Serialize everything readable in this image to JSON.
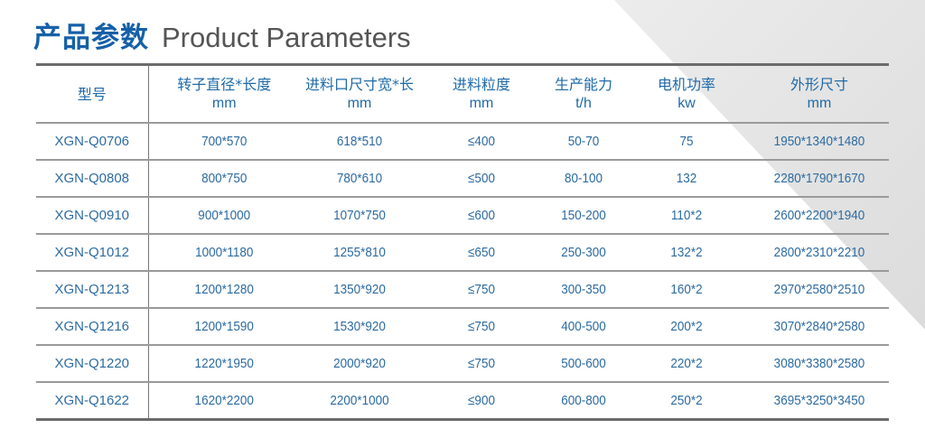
{
  "title": {
    "cn": "产品参数",
    "en": "Product Parameters"
  },
  "colors": {
    "title_blue": "#1660a8",
    "text_blue": "#2d6ba1",
    "background_band": "#e2e2e2"
  },
  "table": {
    "headers": [
      {
        "label": "型号",
        "unit": ""
      },
      {
        "label": "转子直径*长度",
        "unit": "mm"
      },
      {
        "label": "进料口尺寸宽*长",
        "unit": "mm"
      },
      {
        "label": "进料粒度",
        "unit": "mm"
      },
      {
        "label": "生产能力",
        "unit": "t/h"
      },
      {
        "label": "电机功率",
        "unit": "kw"
      },
      {
        "label": "外形尺寸",
        "unit": "mm"
      }
    ],
    "rows": [
      [
        "XGN-Q0706",
        "700*570",
        "618*510",
        "≤400",
        "50-70",
        "75",
        "1950*1340*1480"
      ],
      [
        "XGN-Q0808",
        "800*750",
        "780*610",
        "≤500",
        "80-100",
        "132",
        "2280*1790*1670"
      ],
      [
        "XGN-Q0910",
        "900*1000",
        "1070*750",
        "≤600",
        "150-200",
        "110*2",
        "2600*2200*1940"
      ],
      [
        "XGN-Q1012",
        "1000*1180",
        "1255*810",
        "≤650",
        "250-300",
        "132*2",
        "2800*2310*2210"
      ],
      [
        "XGN-Q1213",
        "1200*1280",
        "1350*920",
        "≤750",
        "300-350",
        "160*2",
        "2970*2580*2510"
      ],
      [
        "XGN-Q1216",
        "1200*1590",
        "1530*920",
        "≤750",
        "400-500",
        "200*2",
        "3070*2840*2580"
      ],
      [
        "XGN-Q1220",
        "1220*1950",
        "2000*920",
        "≤750",
        "500-600",
        "220*2",
        "3080*3380*2580"
      ],
      [
        "XGN-Q1622",
        "1620*2200",
        "2200*1000",
        "≤900",
        "600-800",
        "250*2",
        "3695*3250*3450"
      ]
    ]
  }
}
